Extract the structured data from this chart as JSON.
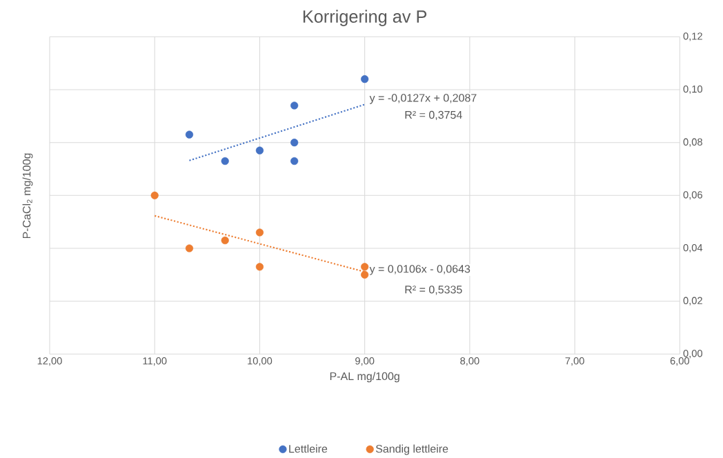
{
  "chart_data": {
    "type": "scatter",
    "title": "Korrigering av P",
    "xlabel": "P-AL mg/100g",
    "ylabel": "P-CaCl$_{2}$ mg/100g",
    "series": [
      {
        "name": "Lettleire",
        "color": "#4472c4",
        "marker": "circle",
        "x": [
          10.67,
          10.33,
          10.0,
          9.67,
          9.67,
          9.67,
          9.0
        ],
        "values": [
          0.083,
          0.073,
          0.077,
          0.094,
          0.08,
          0.073,
          0.104
        ]
      },
      {
        "name": "Sandig lettleire",
        "color": "#ed7d31",
        "marker": "circle",
        "x": [
          11.0,
          10.67,
          10.33,
          10.0,
          10.0,
          9.0,
          9.0
        ],
        "values": [
          0.06,
          0.04,
          0.043,
          0.046,
          0.033,
          0.033,
          0.03
        ]
      },
      {
        "type": "line",
        "line_style": "dotted",
        "marker": "none",
        "color": "#4472c4",
        "x": [
          10.67,
          9.0
        ],
        "values": [
          0.0732,
          0.0944
        ]
      },
      {
        "type": "line",
        "line_style": "dotted",
        "marker": "none",
        "color": "#ed7d31",
        "x": [
          11.0,
          9.0
        ],
        "values": [
          0.0523,
          0.0311
        ]
      }
    ],
    "xlim": [
      12,
      6
    ],
    "ylim": [
      0,
      0.12
    ],
    "xticks": [
      {
        "value": 12,
        "label": "12,00"
      },
      {
        "value": 11,
        "label": "11,00"
      },
      {
        "value": 10,
        "label": "10,00"
      },
      {
        "value": 9,
        "label": "9,00"
      },
      {
        "value": 8,
        "label": "8,00"
      },
      {
        "value": 7,
        "label": "7,00"
      },
      {
        "value": 6,
        "label": "6,00"
      }
    ],
    "yticks": [
      {
        "value": 0,
        "label": "0,00"
      },
      {
        "value": 0.02,
        "label": "0,02"
      },
      {
        "value": 0.04,
        "label": "0,04"
      },
      {
        "value": 0.06,
        "label": "0,06"
      },
      {
        "value": 0.08,
        "label": "0,08"
      },
      {
        "value": 0.1,
        "label": "0,10"
      },
      {
        "value": 0.12,
        "label": "0,12"
      }
    ],
    "annotations": [
      "y = -0,0127x + 0,2087",
      "R² = 0,3754",
      "y = 0,0106x - 0,0643",
      "R² = 0,5335"
    ],
    "grid": true,
    "legend": "bottom"
  }
}
